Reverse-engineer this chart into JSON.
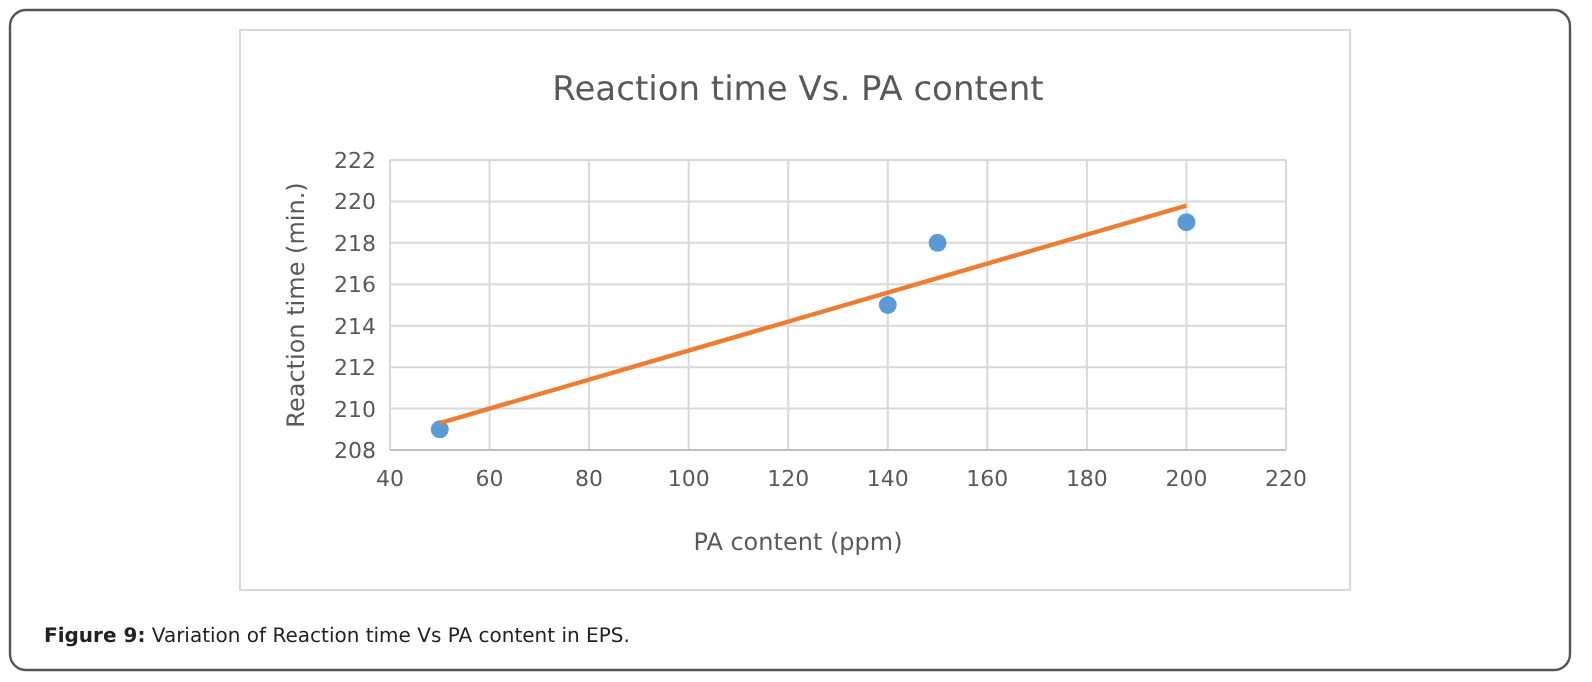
{
  "chart_data": {
    "type": "scatter",
    "title": "Reaction time Vs. PA content",
    "xlabel": "PA content (ppm)",
    "ylabel": "Reaction time (min.)",
    "xlim": [
      40,
      220
    ],
    "xticks": [
      40,
      60,
      80,
      100,
      120,
      140,
      160,
      180,
      200,
      220
    ],
    "ylim": [
      208,
      222
    ],
    "yticks": [
      208,
      210,
      212,
      214,
      216,
      218,
      220,
      222
    ],
    "grid": true,
    "marker": "circle",
    "series": [
      {
        "color": "#5b9bd5",
        "x": [
          50,
          140,
          150,
          200
        ],
        "values": [
          209,
          215,
          218,
          219
        ]
      },
      {
        "type": "line",
        "color": "#ed7d31",
        "marker": "none",
        "line_style": "solid",
        "x": [
          50,
          200
        ],
        "values": [
          209.3,
          219.8
        ]
      }
    ],
    "annotations": [
      "Figure 9: Variation of Reaction time Vs PA content in EPS."
    ]
  }
}
